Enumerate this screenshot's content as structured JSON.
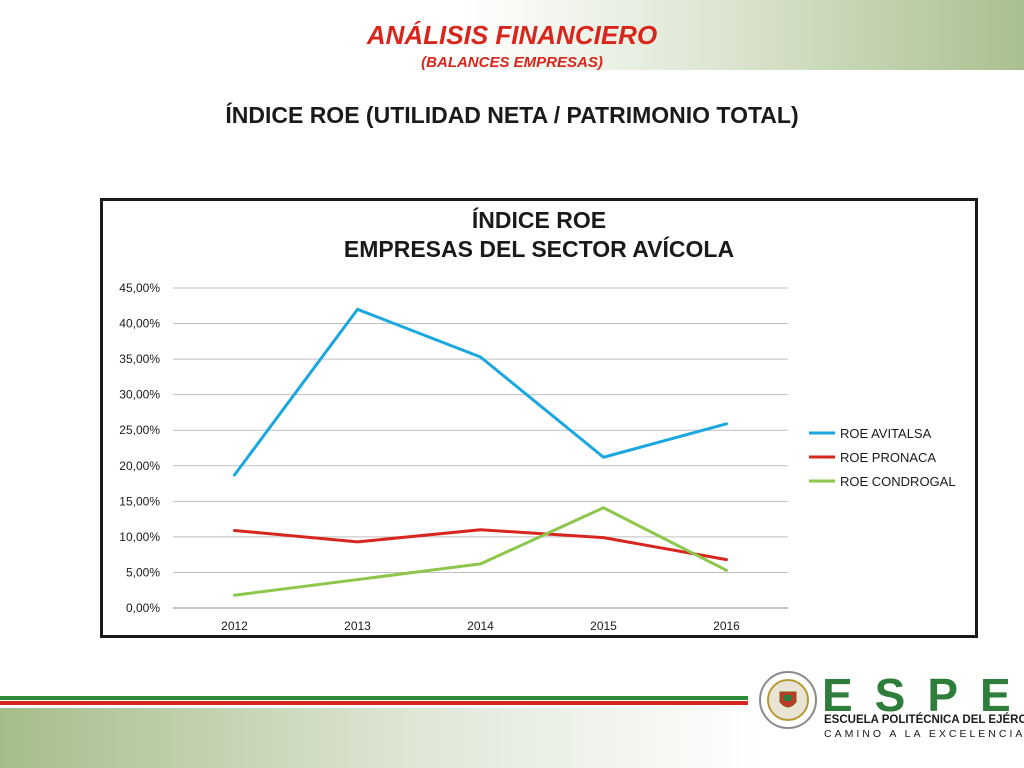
{
  "slide": {
    "title": "ANÁLISIS FINANCIERO",
    "subtitle": "(BALANCES EMPRESAS)",
    "heading": "ÍNDICE ROE (UTILIDAD NETA / PATRIMONIO TOTAL)"
  },
  "chart_data": {
    "type": "line",
    "title_line1": "ÍNDICE ROE",
    "title_line2": "EMPRESAS DEL SECTOR AVÍCOLA",
    "categories": [
      "2012",
      "2013",
      "2014",
      "2015",
      "2016"
    ],
    "series": [
      {
        "name": "ROE AVITALSA",
        "color": "#1aa7e0",
        "values": [
          18.7,
          42.0,
          35.3,
          21.2,
          25.9
        ]
      },
      {
        "name": "ROE PRONACA",
        "color": "#d7261e",
        "values": [
          10.9,
          9.3,
          11.0,
          9.9,
          6.8
        ]
      },
      {
        "name": "ROE CONDROGAL",
        "color": "#8cc74b",
        "values": [
          1.8,
          4.0,
          6.2,
          14.1,
          5.3
        ]
      }
    ],
    "ylim": [
      0,
      45
    ],
    "yticks": [
      "0,00%",
      "5,00%",
      "10,00%",
      "15,00%",
      "20,00%",
      "25,00%",
      "30,00%",
      "35,00%",
      "40,00%",
      "45,00%"
    ],
    "grid": true,
    "legend": "right"
  },
  "logo": {
    "word": "ESPE",
    "line1": "ESCUELA POLITÉCNICA DEL EJÉRCITO",
    "line2": "CAMINO A LA EXCELENCIA"
  }
}
